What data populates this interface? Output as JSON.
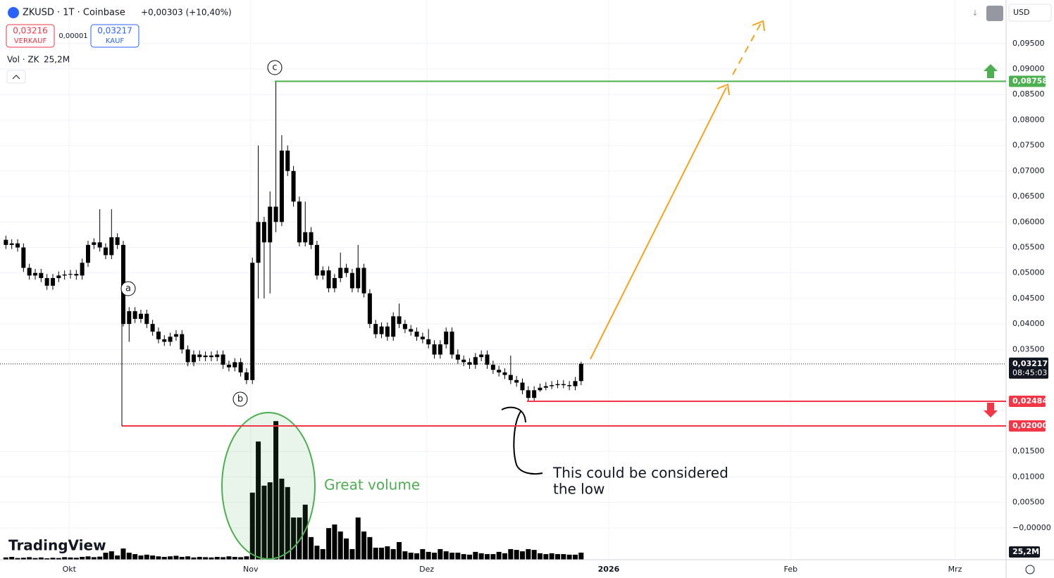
{
  "header": {
    "symbol": "ZKUSD · 1T · Coinbase",
    "change": "+0,00303 (+10,40%)",
    "sell_price": "0,03216",
    "sell_label": "VERKAUF",
    "spread": "0,00001",
    "buy_price": "0,03217",
    "buy_label": "KAUF",
    "volume_label": "Vol · ZK",
    "currency": "USD",
    "branding": "TradingView"
  },
  "chart_data": {
    "type": "candlestick",
    "color": "#000000",
    "categories": [
      null,
      null,
      null,
      null,
      null,
      null,
      null,
      null,
      null,
      null,
      null,
      null,
      null,
      null,
      null,
      null,
      null,
      null,
      null,
      null,
      null,
      null,
      null,
      null,
      null,
      null,
      null,
      null,
      null,
      null,
      null,
      null,
      null,
      null,
      null,
      null,
      null,
      null,
      null,
      null,
      null,
      null,
      null,
      null,
      null,
      null,
      null,
      null,
      null,
      null,
      null,
      null,
      null,
      null,
      null,
      null,
      null,
      null,
      null,
      null,
      null,
      null,
      null,
      null,
      null,
      null,
      null,
      null,
      null,
      null,
      null,
      null,
      null,
      null,
      null,
      null,
      null,
      null,
      null,
      null,
      null,
      null,
      null,
      null,
      null,
      null,
      null,
      null,
      null,
      null,
      null,
      null,
      null,
      null,
      null,
      null,
      null,
      null,
      null
    ],
    "open": [
      0.0565,
      0.0555,
      0.0558,
      0.055,
      0.051,
      0.0495,
      0.05,
      0.049,
      0.0475,
      0.049,
      0.0495,
      0.0497,
      0.0498,
      0.0495,
      0.052,
      0.0555,
      0.056,
      0.055,
      0.0535,
      0.057,
      0.0555,
      0.04,
      0.0425,
      0.041,
      0.042,
      0.04,
      0.0385,
      0.037,
      0.0365,
      0.0375,
      0.038,
      0.035,
      0.0325,
      0.034,
      0.0335,
      0.0338,
      0.0335,
      0.034,
      0.032,
      0.0315,
      0.0325,
      0.0305,
      0.029,
      0.052,
      0.06,
      0.056,
      0.063,
      0.06,
      0.074,
      0.07,
      0.064,
      0.056,
      0.058,
      0.0555,
      0.0495,
      0.0505,
      0.047,
      0.049,
      0.051,
      0.05,
      0.047,
      0.051,
      0.046,
      0.04,
      0.038,
      0.0395,
      0.0375,
      0.0415,
      0.04,
      0.039,
      0.0385,
      0.0375,
      0.037,
      0.036,
      0.034,
      0.036,
      0.0385,
      0.034,
      0.033,
      0.0325,
      0.032,
      0.0335,
      0.034,
      0.032,
      0.031,
      0.0305,
      0.03,
      0.029,
      0.0285,
      0.027,
      0.0255,
      0.027,
      0.0275,
      0.0278,
      0.028,
      0.0282,
      0.028,
      0.0278,
      0.0288
    ],
    "high": [
      0.0573,
      0.0566,
      0.0566,
      0.0558,
      0.0518,
      0.0508,
      0.0508,
      0.0498,
      0.0498,
      0.0503,
      0.0505,
      0.0506,
      0.0506,
      0.0528,
      0.0563,
      0.0568,
      0.0625,
      0.0558,
      0.0625,
      0.0578,
      0.0563,
      0.0433,
      0.0433,
      0.0428,
      0.0428,
      0.0408,
      0.0393,
      0.0378,
      0.0383,
      0.0388,
      0.0388,
      0.0358,
      0.0348,
      0.0348,
      0.0346,
      0.0346,
      0.0348,
      0.0348,
      0.0328,
      0.0333,
      0.0333,
      0.0313,
      0.053,
      0.075,
      0.061,
      0.066,
      0.0875,
      0.077,
      0.075,
      0.071,
      0.065,
      0.064,
      0.059,
      0.0563,
      0.0513,
      0.0513,
      0.0498,
      0.054,
      0.0518,
      0.0508,
      0.0555,
      0.0518,
      0.0468,
      0.0408,
      0.0403,
      0.0403,
      0.0423,
      0.044,
      0.0408,
      0.0398,
      0.0393,
      0.0383,
      0.039,
      0.0368,
      0.0368,
      0.0393,
      0.0393,
      0.035,
      0.0338,
      0.0333,
      0.0343,
      0.0348,
      0.0348,
      0.0328,
      0.0318,
      0.0313,
      0.0338,
      0.0298,
      0.0293,
      0.0278,
      0.0278,
      0.0283,
      0.0286,
      0.0288,
      0.029,
      0.029,
      0.0288,
      0.0296,
      0.0326
    ],
    "low": [
      0.0547,
      0.0547,
      0.0542,
      0.0502,
      0.0487,
      0.0487,
      0.0482,
      0.0467,
      0.0467,
      0.0482,
      0.0487,
      0.0489,
      0.0487,
      0.0487,
      0.0512,
      0.0547,
      0.0542,
      0.0527,
      0.0527,
      0.0547,
      0.0395,
      0.0365,
      0.0402,
      0.0402,
      0.0392,
      0.0377,
      0.0362,
      0.0357,
      0.0357,
      0.0367,
      0.0342,
      0.0317,
      0.0317,
      0.0327,
      0.0327,
      0.0327,
      0.0327,
      0.0312,
      0.0307,
      0.0307,
      0.0297,
      0.0282,
      0.0282,
      0.045,
      0.045,
      0.046,
      0.058,
      0.0592,
      0.069,
      0.063,
      0.0552,
      0.0552,
      0.0547,
      0.0487,
      0.0487,
      0.0462,
      0.0462,
      0.0482,
      0.0492,
      0.0462,
      0.0462,
      0.0452,
      0.0392,
      0.0372,
      0.0372,
      0.0367,
      0.0367,
      0.0392,
      0.0382,
      0.0377,
      0.0367,
      0.0362,
      0.0352,
      0.0332,
      0.0332,
      0.0352,
      0.0332,
      0.0322,
      0.0317,
      0.0312,
      0.0312,
      0.0327,
      0.0312,
      0.0302,
      0.0297,
      0.0292,
      0.0282,
      0.0277,
      0.0262,
      0.0248,
      0.025,
      0.0267,
      0.027,
      0.0272,
      0.0274,
      0.0274,
      0.027,
      0.027,
      0.028
    ],
    "close": [
      0.0555,
      0.0558,
      0.055,
      0.051,
      0.0495,
      0.05,
      0.049,
      0.0475,
      0.049,
      0.0495,
      0.0497,
      0.0498,
      0.0495,
      0.052,
      0.0555,
      0.056,
      0.055,
      0.0535,
      0.057,
      0.0555,
      0.04,
      0.0425,
      0.041,
      0.042,
      0.04,
      0.0385,
      0.037,
      0.0365,
      0.0375,
      0.038,
      0.035,
      0.0325,
      0.034,
      0.0335,
      0.0338,
      0.0335,
      0.034,
      0.032,
      0.0315,
      0.0325,
      0.0305,
      0.029,
      0.052,
      0.06,
      0.056,
      0.063,
      0.06,
      0.074,
      0.07,
      0.064,
      0.056,
      0.058,
      0.0555,
      0.0495,
      0.0505,
      0.047,
      0.049,
      0.051,
      0.05,
      0.047,
      0.051,
      0.046,
      0.04,
      0.038,
      0.0395,
      0.0375,
      0.0415,
      0.04,
      0.039,
      0.0385,
      0.0375,
      0.037,
      0.036,
      0.034,
      0.036,
      0.0385,
      0.034,
      0.033,
      0.0325,
      0.032,
      0.0335,
      0.034,
      0.032,
      0.031,
      0.0305,
      0.03,
      0.029,
      0.0285,
      0.027,
      0.0255,
      0.027,
      0.0275,
      0.0278,
      0.028,
      0.0282,
      0.028,
      0.0278,
      0.0288,
      0.0322
    ],
    "volume": {
      "color": "#000000",
      "lim": [
        0,
        504
      ],
      "values": [
        8,
        10,
        6,
        7,
        9,
        6,
        8,
        5,
        7,
        6,
        9,
        8,
        7,
        10,
        12,
        9,
        11,
        25,
        30,
        15,
        40,
        25,
        20,
        15,
        18,
        15,
        12,
        10,
        12,
        14,
        10,
        12,
        8,
        10,
        9,
        8,
        10,
        9,
        12,
        10,
        9,
        12,
        240,
        423,
        265,
        277,
        496,
        290,
        260,
        151,
        151,
        197,
        81,
        50,
        38,
        113,
        126,
        101,
        76,
        38,
        151,
        101,
        81,
        43,
        43,
        48,
        38,
        63,
        30,
        25,
        23,
        38,
        28,
        25,
        38,
        30,
        25,
        25,
        20,
        18,
        28,
        23,
        20,
        20,
        28,
        23,
        38,
        35,
        30,
        38,
        35,
        23,
        20,
        23,
        20,
        20,
        18,
        18,
        25.2
      ],
      "value_labels": [
        null,
        null,
        null,
        null,
        null,
        null,
        null,
        null,
        null,
        null,
        null,
        null,
        null,
        null,
        null,
        null,
        null,
        null,
        null,
        null,
        null,
        null,
        null,
        null,
        null,
        null,
        null,
        null,
        null,
        null,
        null,
        null,
        null,
        null,
        null,
        null,
        null,
        null,
        null,
        null,
        null,
        null,
        null,
        null,
        null,
        null,
        null,
        null,
        null,
        null,
        null,
        null,
        null,
        null,
        null,
        null,
        null,
        null,
        null,
        null,
        null,
        null,
        null,
        null,
        null,
        null,
        null,
        null,
        null,
        null,
        null,
        null,
        null,
        null,
        null,
        null,
        null,
        null,
        null,
        null,
        null,
        null,
        null,
        null,
        null,
        null,
        null,
        null,
        null,
        null,
        null,
        null,
        null,
        null,
        null,
        null,
        null,
        null,
        "25,2M"
      ]
    },
    "xlim": [
      -1,
      170.4
    ],
    "xticks": [
      {
        "value": 10.8,
        "label": "Okt"
      },
      {
        "value": 41.7,
        "label": "Nov"
      },
      {
        "value": 71.7,
        "label": "Dez"
      },
      {
        "value": 102.7,
        "label": "2026"
      },
      {
        "value": 133.7,
        "label": "Feb"
      },
      {
        "value": 161.7,
        "label": "Mrz"
      }
    ],
    "ylim": [
      -0.00623,
      0.10353
    ],
    "yticks": [
      {
        "value": 0.095,
        "label": "0,09500"
      },
      {
        "value": 0.09,
        "label": "0,09000"
      },
      {
        "value": 0.085,
        "label": "0,08500"
      },
      {
        "value": 0.08,
        "label": "0,08000"
      },
      {
        "value": 0.075,
        "label": "0,07500"
      },
      {
        "value": 0.07,
        "label": "0,07000"
      },
      {
        "value": 0.065,
        "label": "0,06500"
      },
      {
        "value": 0.06,
        "label": "0,06000"
      },
      {
        "value": 0.055,
        "label": "0,05500"
      },
      {
        "value": 0.05,
        "label": "0,05000"
      },
      {
        "value": 0.045,
        "label": "0,04500"
      },
      {
        "value": 0.04,
        "label": "0,04000"
      },
      {
        "value": 0.035,
        "label": "0,03500"
      },
      {
        "value": 0.015,
        "label": "0,01500"
      },
      {
        "value": 0.01,
        "label": "0,01000"
      },
      {
        "value": 0.005,
        "label": "0,00500"
      },
      {
        "value": 0,
        "label": "−0,00000"
      }
    ],
    "grid": true,
    "levels": [
      {
        "value": 0.08758,
        "label": "0,08758",
        "color": "#4caf50"
      },
      {
        "value": 0.02484,
        "label": "0,02484",
        "color": "#f23645"
      },
      {
        "value": 0.02,
        "label": "0,02000",
        "color": "#f23645"
      }
    ],
    "last_price": {
      "value": 0.03217,
      "label": "0,03217",
      "countdown": "08:45:03"
    },
    "annotations": {
      "wave_labels": [
        "a",
        "b",
        "c"
      ],
      "volume_note": "Great volume",
      "low_note": [
        "This could be considered",
        "the low"
      ]
    }
  }
}
